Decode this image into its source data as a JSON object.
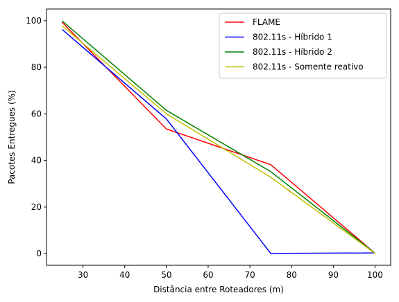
{
  "chart_data": {
    "type": "line",
    "title": "",
    "xlabel": "Distância entre Roteadores (m)",
    "ylabel": "Pacotes Entregues (%)",
    "xlim": [
      21.25,
      103.75
    ],
    "ylim": [
      -5,
      105
    ],
    "xticks": [
      30,
      40,
      50,
      60,
      70,
      80,
      90,
      100
    ],
    "yticks": [
      0,
      20,
      40,
      60,
      80,
      100
    ],
    "grid": false,
    "legend_position": "top-right",
    "series": [
      {
        "name": "FLAME",
        "color": "#ff0000",
        "x": [
          25,
          50,
          75,
          100
        ],
        "y": [
          99.3,
          53.5,
          38.2,
          0.2
        ]
      },
      {
        "name": "802.11s - Híbrido 1",
        "color": "#0000ff",
        "x": [
          25,
          50,
          75,
          100
        ],
        "y": [
          96.2,
          57.8,
          0.1,
          0.3
        ]
      },
      {
        "name": "802.11s - Híbrido 2",
        "color": "#008000",
        "x": [
          25,
          50,
          75,
          100
        ],
        "y": [
          99.9,
          61.5,
          35.2,
          0.2
        ]
      },
      {
        "name": "802.11s - Somente reativo",
        "color": "#bfbf00",
        "x": [
          25,
          50,
          75,
          100
        ],
        "y": [
          97.8,
          60.0,
          32.8,
          0.1
        ]
      }
    ]
  }
}
